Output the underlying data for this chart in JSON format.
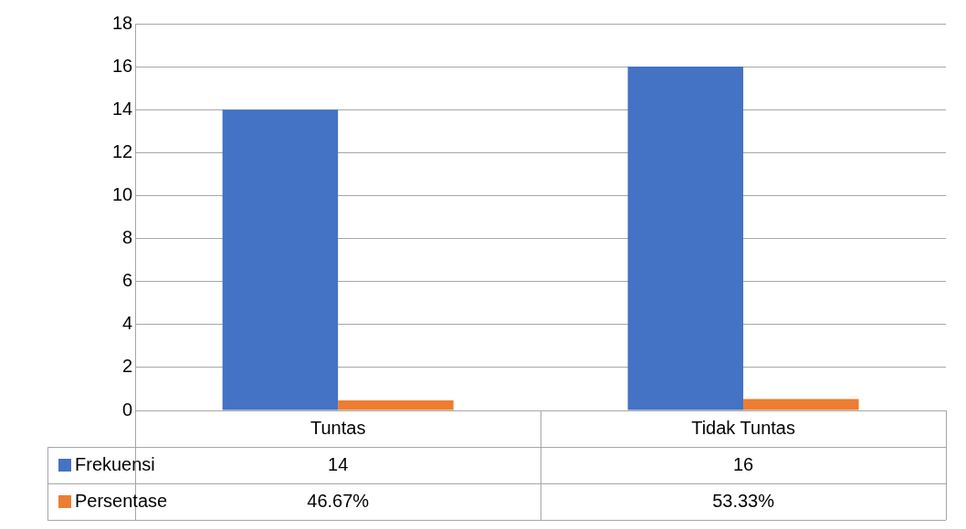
{
  "chart_data": {
    "type": "bar",
    "categories": [
      "Tuntas",
      "Tidak Tuntas"
    ],
    "series": [
      {
        "name": "Frekuensi",
        "color": "#4472c4",
        "values": [
          14,
          16
        ],
        "value_labels": [
          "14",
          "16"
        ]
      },
      {
        "name": "Persentase",
        "color": "#ed7d31",
        "values": [
          0.4667,
          0.5333
        ],
        "value_labels": [
          "46.67%",
          "53.33%"
        ]
      }
    ],
    "ylim": [
      0,
      18
    ],
    "yticks": [
      0,
      2,
      4,
      6,
      8,
      10,
      12,
      14,
      16,
      18
    ],
    "grid": "y",
    "legend": "bottom"
  }
}
